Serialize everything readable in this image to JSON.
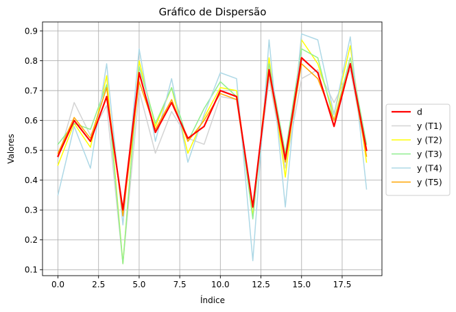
{
  "chart_data": {
    "type": "line",
    "title": "Gráfico de Dispersão",
    "xlabel": "Índice",
    "ylabel": "Valores",
    "xlim": [
      -0.95,
      19.95
    ],
    "ylim": [
      0.08,
      0.93
    ],
    "x": [
      0,
      1,
      2,
      3,
      4,
      5,
      6,
      7,
      8,
      9,
      10,
      11,
      12,
      13,
      14,
      15,
      16,
      17,
      18,
      19
    ],
    "x_ticks": [
      0,
      2.5,
      5,
      7.5,
      10,
      12.5,
      15,
      17.5
    ],
    "x_tick_labels": [
      "0.0",
      "2.5",
      "5.0",
      "7.5",
      "10.0",
      "12.5",
      "15.0",
      "17.5"
    ],
    "y_ticks": [
      0.1,
      0.2,
      0.3,
      0.4,
      0.5,
      0.6,
      0.7,
      0.8,
      0.9
    ],
    "y_tick_labels": [
      "0.1",
      "0.2",
      "0.3",
      "0.4",
      "0.5",
      "0.6",
      "0.7",
      "0.8",
      "0.9"
    ],
    "grid": true,
    "legend_position": "center-right-outside",
    "series": [
      {
        "name": "y (T1)",
        "color": "#d3d3d3",
        "width": 1.5,
        "values": [
          0.47,
          0.66,
          0.55,
          0.65,
          0.12,
          0.7,
          0.49,
          0.63,
          0.54,
          0.52,
          0.68,
          0.67,
          0.29,
          0.74,
          0.44,
          0.74,
          0.77,
          0.66,
          0.77,
          0.48
        ]
      },
      {
        "name": "y (T2)",
        "color": "#ffff00",
        "width": 1.5,
        "values": [
          0.45,
          0.59,
          0.51,
          0.75,
          0.12,
          0.8,
          0.58,
          0.71,
          0.49,
          0.61,
          0.71,
          0.7,
          0.28,
          0.81,
          0.41,
          0.87,
          0.79,
          0.62,
          0.85,
          0.46
        ]
      },
      {
        "name": "y (T3)",
        "color": "#90ee90",
        "width": 1.5,
        "values": [
          0.52,
          0.59,
          0.57,
          0.72,
          0.12,
          0.78,
          0.59,
          0.71,
          0.53,
          0.64,
          0.73,
          0.68,
          0.27,
          0.79,
          0.49,
          0.84,
          0.81,
          0.6,
          0.81,
          0.52
        ]
      },
      {
        "name": "y (T4)",
        "color": "#add8e6",
        "width": 1.5,
        "values": [
          0.35,
          0.58,
          0.44,
          0.79,
          0.25,
          0.84,
          0.53,
          0.74,
          0.46,
          0.62,
          0.76,
          0.74,
          0.13,
          0.87,
          0.31,
          0.89,
          0.87,
          0.62,
          0.88,
          0.37
        ]
      },
      {
        "name": "y (T5)",
        "color": "#ffa500",
        "width": 1.5,
        "values": [
          0.49,
          0.61,
          0.54,
          0.71,
          0.28,
          0.73,
          0.57,
          0.67,
          0.53,
          0.6,
          0.69,
          0.67,
          0.31,
          0.76,
          0.46,
          0.79,
          0.74,
          0.6,
          0.79,
          0.48
        ]
      },
      {
        "name": "d",
        "color": "#ff0000",
        "width": 2.2,
        "values": [
          0.48,
          0.6,
          0.53,
          0.68,
          0.3,
          0.76,
          0.56,
          0.66,
          0.54,
          0.58,
          0.7,
          0.68,
          0.31,
          0.77,
          0.47,
          0.81,
          0.76,
          0.58,
          0.79,
          0.5
        ]
      }
    ],
    "legend_order": [
      "d",
      "y (T1)",
      "y (T2)",
      "y (T3)",
      "y (T4)",
      "y (T5)"
    ]
  }
}
